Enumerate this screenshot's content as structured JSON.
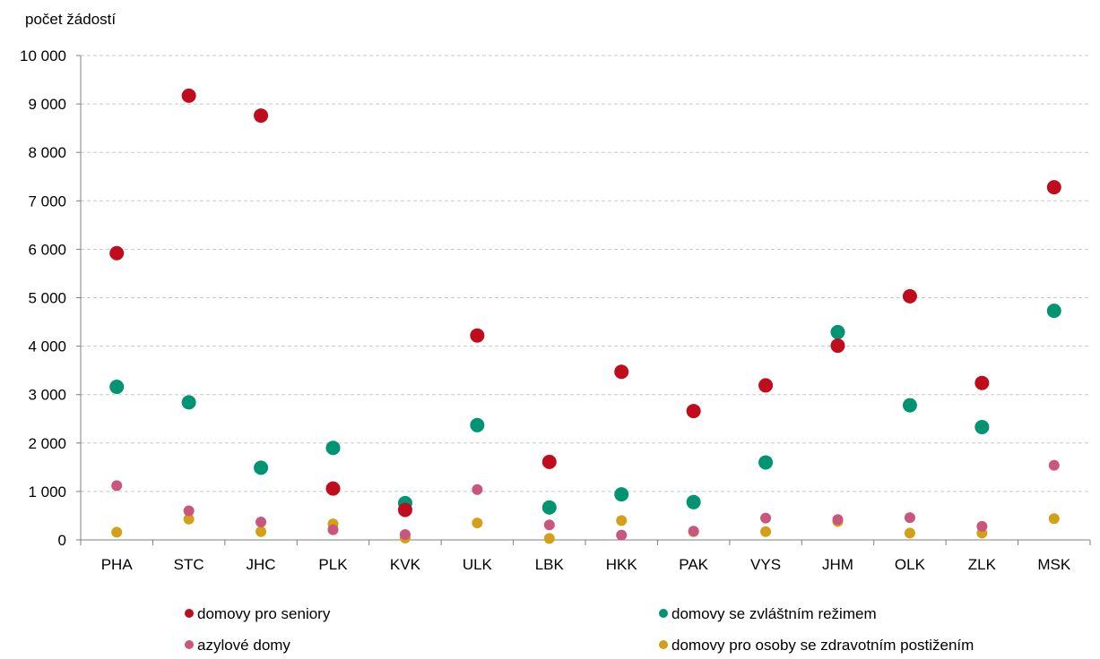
{
  "chart_data": {
    "type": "scatter",
    "ylabel": "počet žádostí",
    "xlabel": "",
    "ylim": [
      0,
      10000
    ],
    "yticks": [
      0,
      1000,
      2000,
      3000,
      4000,
      5000,
      6000,
      7000,
      8000,
      9000,
      10000
    ],
    "ytick_labels": [
      "0",
      "1 000",
      "2 000",
      "3 000",
      "4 000",
      "5 000",
      "6 000",
      "7 000",
      "8 000",
      "9 000",
      "10 000"
    ],
    "grid": true,
    "legend_position": "bottom",
    "categories": [
      "PHA",
      "STC",
      "JHC",
      "PLK",
      "KVK",
      "ULK",
      "LBK",
      "HKK",
      "PAK",
      "VYS",
      "JHM",
      "OLK",
      "ZLK",
      "MSK"
    ],
    "series": [
      {
        "name": "domovy pro seniory",
        "color": "#c00d1e",
        "values": [
          5920,
          9170,
          8760,
          1060,
          620,
          4220,
          1610,
          3470,
          2660,
          3190,
          4010,
          5030,
          3240,
          7280
        ]
      },
      {
        "name": "domovy se zvláštním režimem",
        "color": "#009473",
        "values": [
          3160,
          2840,
          1490,
          1900,
          760,
          2370,
          670,
          940,
          780,
          1600,
          4290,
          2780,
          2330,
          4730
        ]
      },
      {
        "name": "azylové domy",
        "color": "#c8567e",
        "values": [
          1120,
          600,
          370,
          210,
          110,
          1040,
          310,
          100,
          180,
          450,
          420,
          460,
          280,
          1540
        ]
      },
      {
        "name": "domovy pro osoby se zdravotním postižením",
        "color": "#d4a017",
        "values": [
          160,
          430,
          170,
          330,
          40,
          350,
          30,
          400,
          170,
          170,
          380,
          140,
          140,
          440
        ]
      }
    ]
  }
}
